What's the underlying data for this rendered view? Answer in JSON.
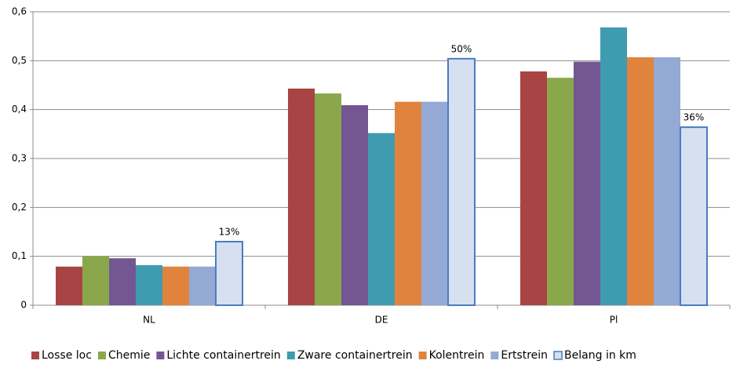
{
  "chart_data": {
    "type": "bar",
    "categories": [
      "NL",
      "DE",
      "Pl"
    ],
    "series": [
      {
        "name": "Losse loc",
        "color": "#a94444",
        "values": [
          0.079,
          0.443,
          0.478
        ]
      },
      {
        "name": "Chemie",
        "color": "#8aa84b",
        "values": [
          0.101,
          0.433,
          0.465
        ]
      },
      {
        "name": "Lichte containertrein",
        "color": "#735692",
        "values": [
          0.096,
          0.409,
          0.498
        ]
      },
      {
        "name": "Zware containertrein",
        "color": "#3f9bb0",
        "values": [
          0.082,
          0.352,
          0.568
        ]
      },
      {
        "name": "Kolentrein",
        "color": "#e0843d",
        "values": [
          0.079,
          0.416,
          0.507
        ]
      },
      {
        "name": "Ertstrein",
        "color": "#94a9d4",
        "values": [
          0.079,
          0.416,
          0.507
        ]
      },
      {
        "name": "Belang in km",
        "color": "#d6e0f0",
        "stroke": "#4a7cc0",
        "values": [
          0.13,
          0.504,
          0.364
        ],
        "value_labels": [
          "13%",
          "50%",
          "36%"
        ]
      }
    ],
    "ylim": [
      0,
      0.6
    ],
    "yticks": [
      0,
      {
        "value": 0.1,
        "label": "0,1"
      },
      {
        "value": 0.2,
        "label": "0,2"
      },
      {
        "value": 0.3,
        "label": "0,3"
      },
      {
        "value": 0.4,
        "label": "0,4"
      },
      {
        "value": 0.5,
        "label": "0,5"
      },
      {
        "value": 0.6,
        "label": "0,6"
      }
    ],
    "grid": true,
    "legend": "bottom"
  }
}
